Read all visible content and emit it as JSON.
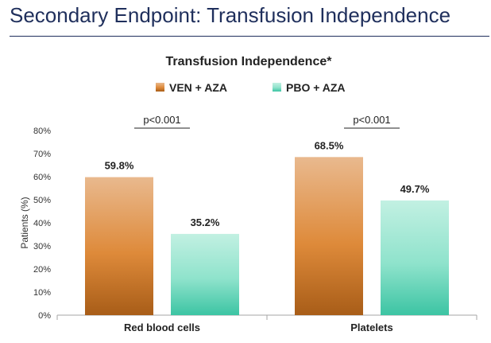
{
  "slide": {
    "title": "Secondary Endpoint: Transfusion Independence"
  },
  "colors": {
    "series1_top": "#e9b98e",
    "series1_mid": "#de8a3a",
    "series1_bottom": "#a85d18",
    "series2_top": "#c2f0e2",
    "series2_mid": "#8fe3cc",
    "series2_bottom": "#3cc4a3",
    "title_navy": "#1f2f5c"
  },
  "chart_data": {
    "type": "bar",
    "title": "Transfusion Independence*",
    "ylabel": "Patients (%)",
    "xlabel": "",
    "ylim": [
      0,
      80
    ],
    "yticks": [
      0,
      10,
      20,
      30,
      40,
      50,
      60,
      70,
      80
    ],
    "ytick_format": "{v}%",
    "grid": false,
    "legend": "top",
    "categories": [
      "Red blood cells",
      "Platelets"
    ],
    "series": [
      {
        "name": "VEN + AZA",
        "values": [
          59.8,
          68.5
        ],
        "labels": [
          "59.8%",
          "68.5%"
        ]
      },
      {
        "name": "PBO + AZA",
        "values": [
          35.2,
          49.7
        ],
        "labels": [
          "35.2%",
          "49.7%"
        ]
      }
    ],
    "annotations": [
      "p<0.001",
      "p<0.001"
    ]
  }
}
